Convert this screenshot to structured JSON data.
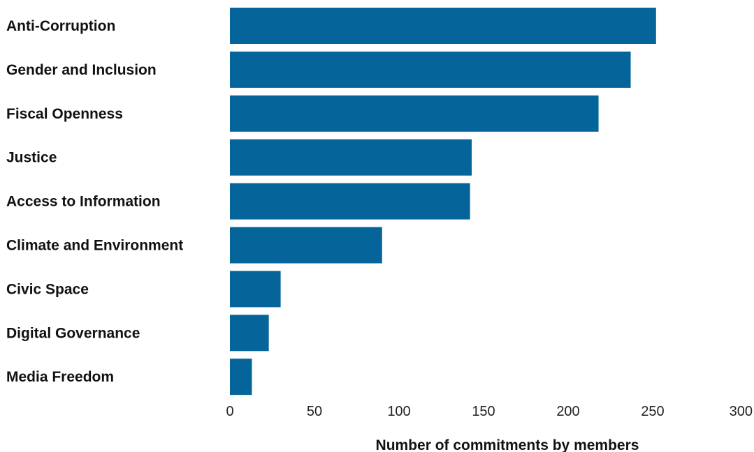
{
  "chart_data": {
    "type": "bar",
    "orientation": "horizontal",
    "title": "",
    "xlabel": "Number of commitments by members",
    "ylabel": "",
    "categories": [
      "Anti-Corruption",
      "Gender and Inclusion",
      "Fiscal Openness",
      "Justice",
      "Access to Information",
      "Climate and Environment",
      "Civic Space",
      "Digital Governance",
      "Media Freedom"
    ],
    "values": [
      252,
      237,
      218,
      143,
      142,
      90,
      30,
      23,
      13
    ],
    "xlim": [
      0,
      300
    ],
    "xticks": [
      0,
      50,
      100,
      150,
      200,
      250,
      300
    ],
    "grid": false,
    "legend": "none",
    "bar_color": "#05659A"
  }
}
